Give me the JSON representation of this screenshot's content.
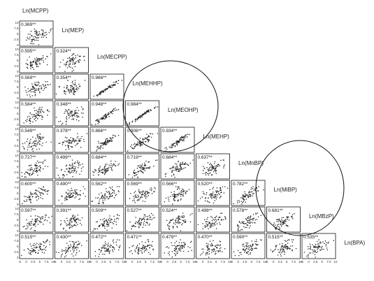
{
  "chart_data": {
    "type": "scatter",
    "title": "",
    "variables": [
      "Ln(MCPP)",
      "Ln(MEP)",
      "Ln(MECPP)",
      "Ln(MEHHP)",
      "Ln(MEOHP)",
      "Ln(MEHP)",
      "Ln(MnBP)",
      "Ln(MiBP)",
      "Ln(MBzP)",
      "Ln(BPA)"
    ],
    "correlations": [
      {
        "row": 0,
        "col": 0,
        "r": "0.369**"
      },
      {
        "row": 1,
        "col": 0,
        "r": "0.595**"
      },
      {
        "row": 1,
        "col": 1,
        "r": "0.324**"
      },
      {
        "row": 2,
        "col": 0,
        "r": "0.569**"
      },
      {
        "row": 2,
        "col": 1,
        "r": "0.354**"
      },
      {
        "row": 2,
        "col": 2,
        "r": "0.966**"
      },
      {
        "row": 3,
        "col": 0,
        "r": "0.584**"
      },
      {
        "row": 3,
        "col": 1,
        "r": "0.348**"
      },
      {
        "row": 3,
        "col": 2,
        "r": "0.948**"
      },
      {
        "row": 3,
        "col": 3,
        "r": "0.984**"
      },
      {
        "row": 4,
        "col": 0,
        "r": "0.549**"
      },
      {
        "row": 4,
        "col": 1,
        "r": "0.378**"
      },
      {
        "row": 4,
        "col": 2,
        "r": "0.866**"
      },
      {
        "row": 4,
        "col": 3,
        "r": "0.906**"
      },
      {
        "row": 4,
        "col": 4,
        "r": "0.934**"
      },
      {
        "row": 5,
        "col": 0,
        "r": "0.727**"
      },
      {
        "row": 5,
        "col": 1,
        "r": "0.499**"
      },
      {
        "row": 5,
        "col": 2,
        "r": "0.684**"
      },
      {
        "row": 5,
        "col": 3,
        "r": "0.719**"
      },
      {
        "row": 5,
        "col": 4,
        "r": "0.684**"
      },
      {
        "row": 5,
        "col": 5,
        "r": "0.637**"
      },
      {
        "row": 6,
        "col": 0,
        "r": "0.600**"
      },
      {
        "row": 6,
        "col": 1,
        "r": "0.490**"
      },
      {
        "row": 6,
        "col": 2,
        "r": "0.562**"
      },
      {
        "row": 6,
        "col": 3,
        "r": "0.569**"
      },
      {
        "row": 6,
        "col": 4,
        "r": "0.566**"
      },
      {
        "row": 6,
        "col": 5,
        "r": "0.520**"
      },
      {
        "row": 6,
        "col": 6,
        "r": "0.782**"
      },
      {
        "row": 7,
        "col": 0,
        "r": "0.597**"
      },
      {
        "row": 7,
        "col": 1,
        "r": "0.391**"
      },
      {
        "row": 7,
        "col": 2,
        "r": "0.509**"
      },
      {
        "row": 7,
        "col": 3,
        "r": "0.527**"
      },
      {
        "row": 7,
        "col": 4,
        "r": "0.524**"
      },
      {
        "row": 7,
        "col": 5,
        "r": "0.498**"
      },
      {
        "row": 7,
        "col": 6,
        "r": "0.578**"
      },
      {
        "row": 7,
        "col": 7,
        "r": "0.681**"
      },
      {
        "row": 8,
        "col": 0,
        "r": "0.515**"
      },
      {
        "row": 8,
        "col": 1,
        "r": "0.430**"
      },
      {
        "row": 8,
        "col": 2,
        "r": "0.472**"
      },
      {
        "row": 8,
        "col": 3,
        "r": "0.471**"
      },
      {
        "row": 8,
        "col": 4,
        "r": "0.479**"
      },
      {
        "row": 8,
        "col": 5,
        "r": "0.470**"
      },
      {
        "row": 8,
        "col": 6,
        "r": "0.590**"
      },
      {
        "row": 8,
        "col": 7,
        "r": "0.515**"
      },
      {
        "row": 8,
        "col": 8,
        "r": "0.535**"
      }
    ],
    "x_ticks": [
      "-5",
      "0",
      "2.5",
      "5",
      "7.5",
      "10"
    ],
    "y_ticks": [
      "10",
      "7.5",
      "5",
      "2.5",
      "0"
    ],
    "grid": false,
    "highlight_circles": [
      {
        "shape": "ellipse",
        "stroke": "#111111"
      },
      {
        "shape": "ellipse",
        "stroke": "#111111"
      }
    ],
    "colors": {
      "points": "#222222",
      "frame": "#111111",
      "background": "#ffffff"
    }
  }
}
